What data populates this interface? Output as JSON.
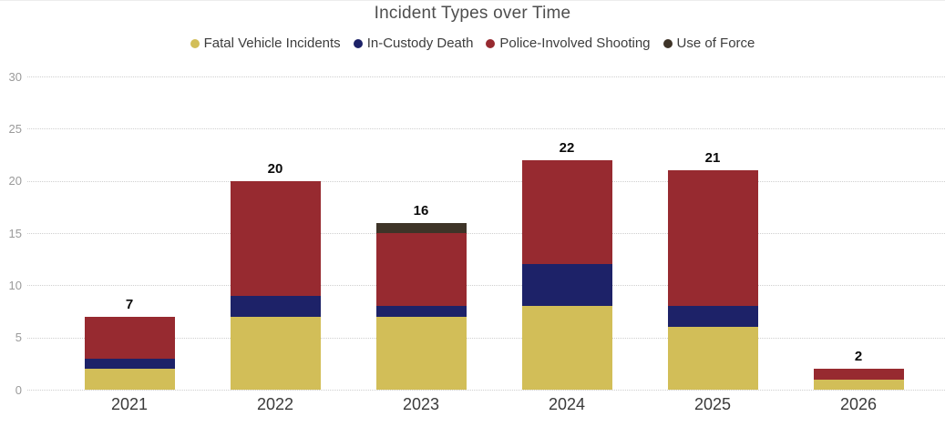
{
  "title": "Incident Types over Time",
  "chart_data": {
    "type": "bar",
    "stacked": true,
    "title": "Incident Types over Time",
    "categories": [
      "2021",
      "2022",
      "2023",
      "2024",
      "2025",
      "2026"
    ],
    "series": [
      {
        "name": "Fatal Vehicle Incidents",
        "color": "#d2be58",
        "values": [
          2,
          7,
          7,
          8,
          6,
          1
        ]
      },
      {
        "name": "In-Custody Death",
        "color": "#1d2268",
        "values": [
          1,
          2,
          1,
          4,
          2,
          0
        ]
      },
      {
        "name": "Police-Involved Shooting",
        "color": "#972a30",
        "values": [
          4,
          11,
          7,
          10,
          13,
          1
        ]
      },
      {
        "name": "Use of Force",
        "color": "#3e3428",
        "values": [
          0,
          0,
          1,
          0,
          0,
          0
        ]
      }
    ],
    "totals": [
      7,
      20,
      16,
      22,
      21,
      2
    ],
    "y_ticks": [
      0,
      5,
      10,
      15,
      20,
      25,
      30
    ],
    "ylim": [
      0,
      30
    ],
    "xlabel": "",
    "ylabel": "",
    "grid": "horizontal-dotted",
    "legend_position": "top-center"
  }
}
